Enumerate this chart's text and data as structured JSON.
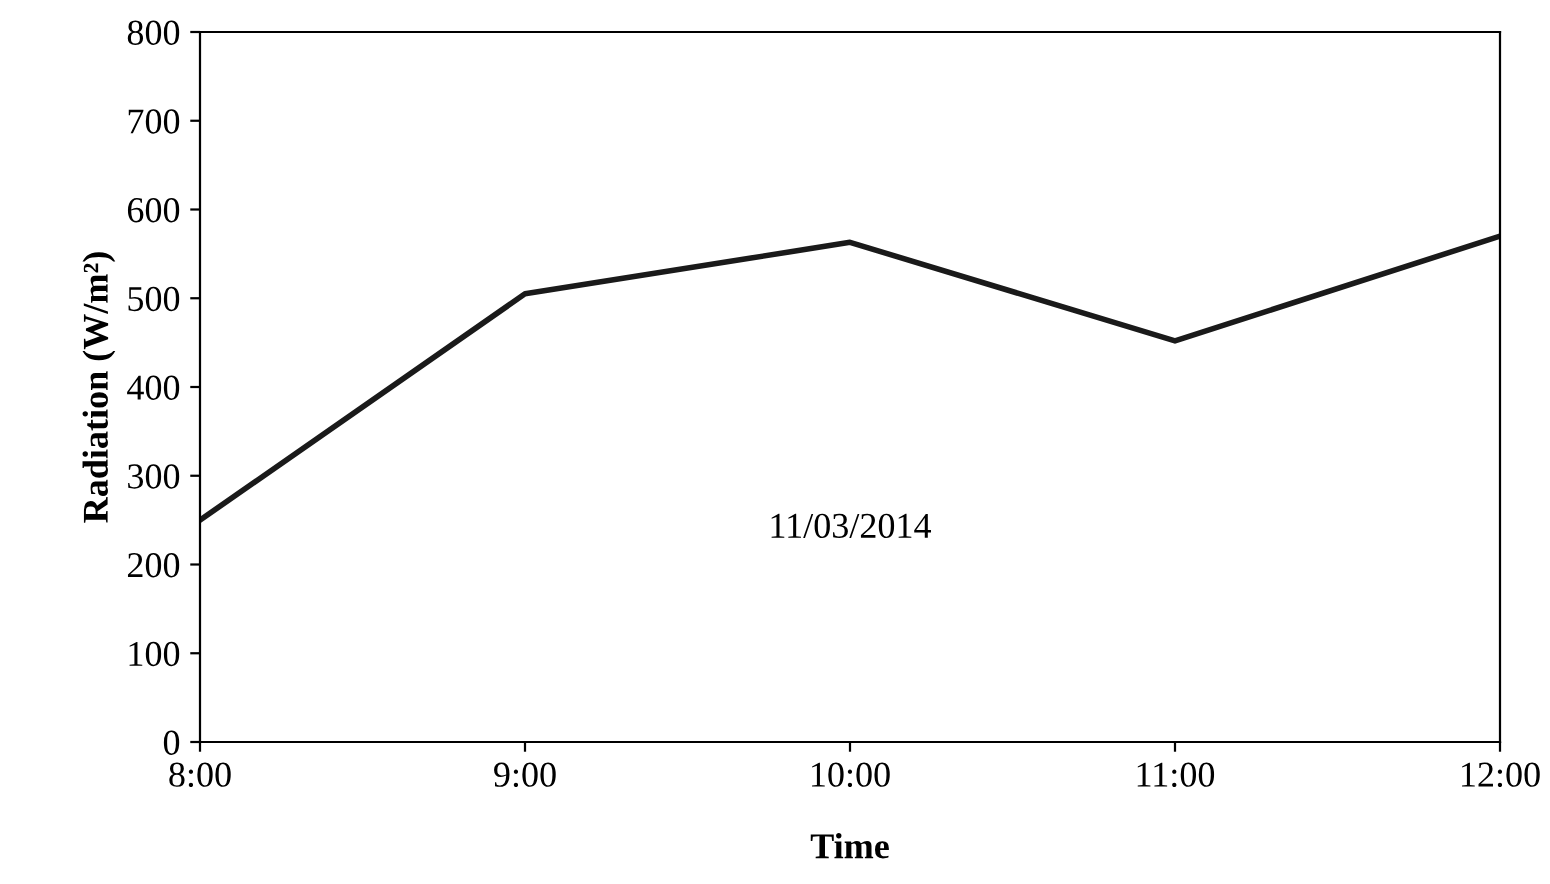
{
  "chart_data": {
    "type": "line",
    "xlabel": "Time",
    "ylabel": "Radiation (W/m²)",
    "x": [
      8,
      9,
      10,
      11,
      12
    ],
    "series": [
      {
        "color": "#1a1a1a",
        "values": [
          250,
          505,
          563,
          452,
          570
        ]
      }
    ],
    "xlim": [
      8,
      12
    ],
    "xticks": [
      {
        "value": 8,
        "label": "8:00"
      },
      {
        "value": 9,
        "label": "9:00"
      },
      {
        "value": 10,
        "label": "10:00"
      },
      {
        "value": 11,
        "label": "11:00"
      },
      {
        "value": 12,
        "label": "12:00"
      }
    ],
    "ylim": [
      0,
      800
    ],
    "yticks": [
      0,
      100,
      200,
      300,
      400,
      500,
      600,
      700,
      800
    ],
    "annotations": [
      "11/03/2014"
    ],
    "grid": false,
    "legend": false,
    "marker": "none",
    "line_style": "solid"
  }
}
